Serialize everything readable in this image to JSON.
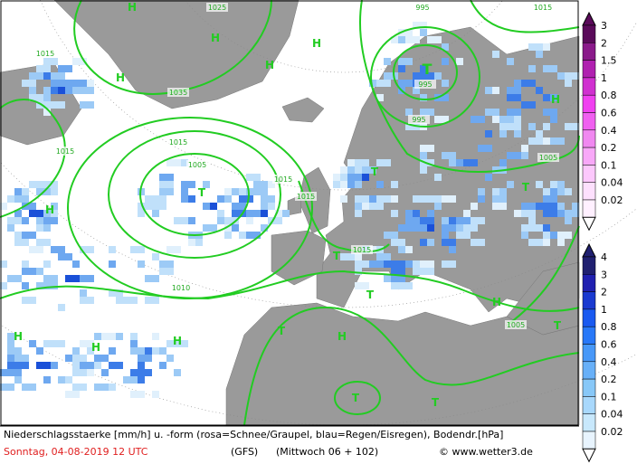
{
  "caption": {
    "line1": "Niederschlagsstaerke [mm/h] u. -form (rosa=Schnee/Graupel, blau=Regen/Eisregen), Bodendr.[hPa]",
    "date": "Sonntag, 04-08-2019  12 UTC",
    "model": "(GFS)",
    "run": "(Mittwoch 06 + 102)",
    "credit": "© www.wetter3.de"
  },
  "legend_snow": {
    "labels": [
      3,
      2,
      1.5,
      1,
      0.8,
      0.6,
      0.4,
      0.2,
      0.1,
      0.04,
      0.02
    ]
  },
  "legend_rain": {
    "labels": [
      4,
      3,
      2,
      1,
      0.8,
      0.6,
      0.4,
      0.2,
      0.1,
      0.04,
      0.02
    ]
  },
  "map": {
    "isobar_labels": [
      "1025",
      "1015",
      "995",
      "1035",
      "1015",
      "1015",
      "1005",
      "1015",
      "1015",
      "1010",
      "1015",
      "995",
      "995",
      "1005",
      "1005",
      "1015"
    ],
    "pressure_centers": [
      "H",
      "H",
      "H",
      "H",
      "H",
      "H",
      "H",
      "H",
      "H",
      "H",
      "H",
      "H",
      "T",
      "T",
      "T",
      "T",
      "T",
      "T",
      "T",
      "T",
      "T",
      "T"
    ]
  }
}
